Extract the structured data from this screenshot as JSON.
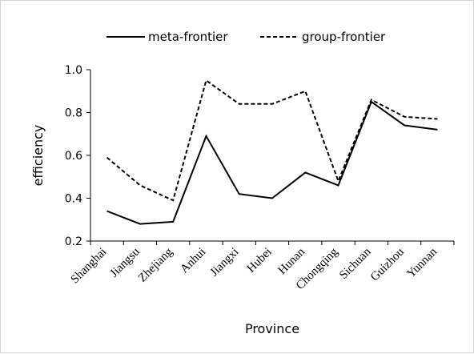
{
  "chart_data": {
    "type": "line",
    "title": "",
    "xlabel": "Province",
    "ylabel": "efficiency",
    "ylim": [
      0.2,
      1.0
    ],
    "yticks": [
      "0.2",
      "0.4",
      "0.6",
      "0.8",
      "1.0"
    ],
    "categories": [
      "Shanghai",
      "Jiangsu",
      "Zhejiang",
      "Anhui",
      "Jiangxi",
      "Hubei",
      "Hunan",
      "Chongqing",
      "Sichuan",
      "Guizhou",
      "Yunnan"
    ],
    "series": [
      {
        "name": "meta-frontier",
        "style": "solid",
        "color": "#000000",
        "values": [
          0.34,
          0.28,
          0.29,
          0.69,
          0.42,
          0.4,
          0.52,
          0.46,
          0.85,
          0.74,
          0.72
        ]
      },
      {
        "name": "group-frontier",
        "style": "dashed",
        "color": "#000000",
        "values": [
          0.59,
          0.46,
          0.39,
          0.95,
          0.84,
          0.84,
          0.9,
          0.48,
          0.86,
          0.78,
          0.77
        ]
      }
    ],
    "legend_position": "top-center",
    "grid": false
  }
}
